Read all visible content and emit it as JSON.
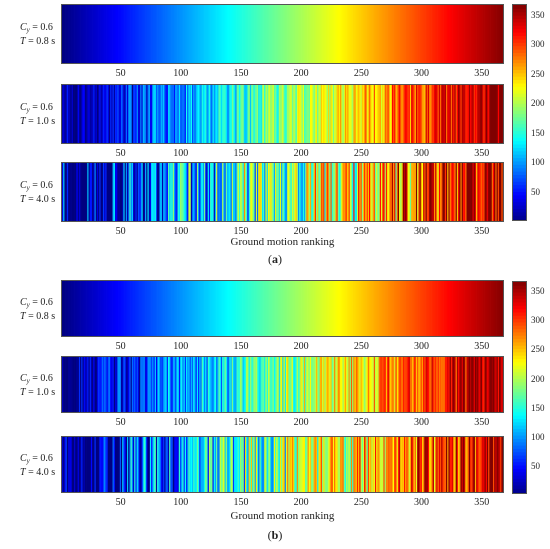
{
  "chart_data": [
    {
      "caption": "a",
      "type": "heatmap",
      "xlabel": "Ground motion ranking",
      "x_ticks": [
        50,
        100,
        150,
        200,
        250,
        300,
        350
      ],
      "xlim": [
        1,
        368
      ],
      "colorbar": {
        "ticks": [
          50,
          100,
          150,
          200,
          250,
          300,
          350
        ],
        "range": [
          1,
          368
        ],
        "colormap": "jet"
      },
      "rows": [
        {
          "cy_label": "0.6",
          "t_label": "0.8 s",
          "values": "ranking 1–368 in order (smooth gradient)",
          "noise": 0
        },
        {
          "cy_label": "0.6",
          "t_label": "1.0 s",
          "values": "ranking 1–368 with moderate reordering",
          "noise": 0.12
        },
        {
          "cy_label": "0.6",
          "t_label": "4.0 s",
          "values": "ranking 1–368 with strong reordering",
          "noise": 0.26
        }
      ]
    },
    {
      "caption": "b",
      "type": "heatmap",
      "xlabel": "Ground motion ranking",
      "x_ticks": [
        50,
        100,
        150,
        200,
        250,
        300,
        350
      ],
      "xlim": [
        1,
        368
      ],
      "colorbar": {
        "ticks": [
          50,
          100,
          150,
          200,
          250,
          300,
          350
        ],
        "range": [
          1,
          368
        ],
        "colormap": "jet"
      },
      "rows": [
        {
          "cy_label": "0.6",
          "t_label": "0.8 s",
          "values": "ranking 1–368 in order (smooth gradient)",
          "noise": 0
        },
        {
          "cy_label": "0.6",
          "t_label": "1.0 s",
          "values": "ranking 1–368 with moderate reordering",
          "noise": 0.14
        },
        {
          "cy_label": "0.6",
          "t_label": "4.0 s",
          "values": "ranking 1–368 with strong reordering",
          "noise": 0.22
        }
      ]
    }
  ],
  "symbols": {
    "cy": "C",
    "cy_sub": "y",
    "t": "T"
  }
}
